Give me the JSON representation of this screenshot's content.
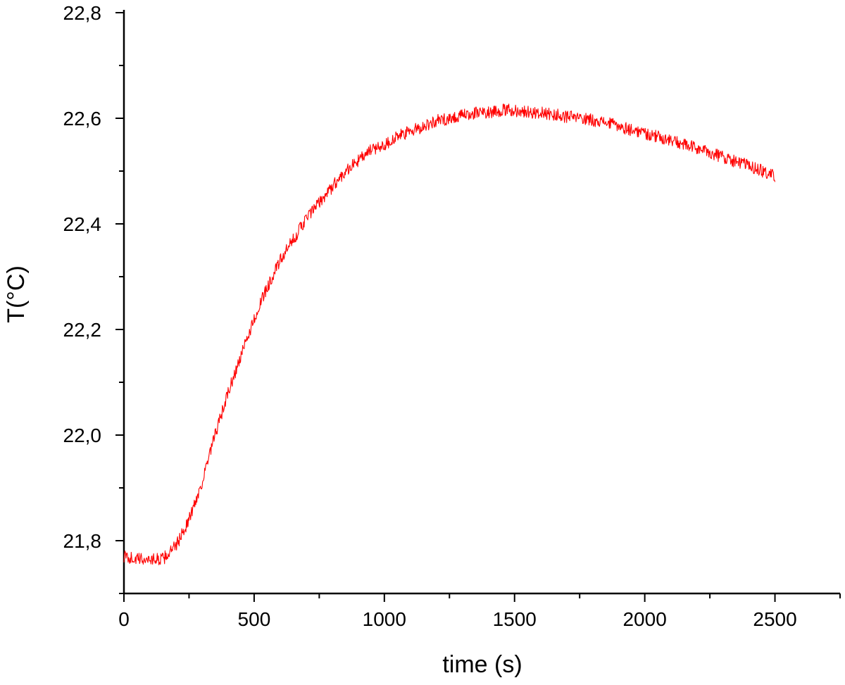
{
  "chart_data": {
    "type": "line",
    "xlabel": "time (s)",
    "ylabel": "T(°C)",
    "xlim": [
      0,
      2750
    ],
    "ylim": [
      21.7,
      22.8
    ],
    "x_ticks": [
      0,
      500,
      1000,
      1500,
      2000,
      2500
    ],
    "x_tick_labels": [
      "0",
      "500",
      "1000",
      "1500",
      "2000",
      "2500"
    ],
    "x_minor_ticks": [
      250,
      750,
      1250,
      1750,
      2250,
      2750
    ],
    "y_ticks": [
      21.8,
      22.0,
      22.2,
      22.4,
      22.6,
      22.8
    ],
    "y_tick_labels": [
      "21,8",
      "22,0",
      "22,2",
      "22,4",
      "22,6",
      "22,8"
    ],
    "y_minor_ticks": [
      21.7,
      21.9,
      22.1,
      22.3,
      22.5,
      22.7
    ],
    "grid": false,
    "legend": "none",
    "series": [
      {
        "color": "#ff0000",
        "noise_amplitude": 0.012,
        "x": [
          0,
          50,
          100,
          150,
          200,
          250,
          300,
          350,
          400,
          450,
          500,
          550,
          600,
          650,
          700,
          750,
          800,
          850,
          900,
          950,
          1000,
          1050,
          1100,
          1150,
          1200,
          1250,
          1300,
          1350,
          1400,
          1450,
          1500,
          1550,
          1600,
          1650,
          1700,
          1750,
          1800,
          1850,
          1900,
          1950,
          2000,
          2050,
          2100,
          2150,
          2200,
          2250,
          2300,
          2350,
          2400,
          2450,
          2500
        ],
        "y": [
          21.77,
          21.765,
          21.765,
          21.765,
          21.79,
          21.84,
          21.91,
          22.0,
          22.08,
          22.15,
          22.22,
          22.28,
          22.33,
          22.37,
          22.41,
          22.44,
          22.47,
          22.5,
          22.52,
          22.54,
          22.55,
          22.565,
          22.575,
          22.585,
          22.595,
          22.6,
          22.605,
          22.61,
          22.612,
          22.615,
          22.615,
          22.612,
          22.61,
          22.607,
          22.603,
          22.6,
          22.597,
          22.592,
          22.585,
          22.578,
          22.572,
          22.565,
          22.558,
          22.55,
          22.543,
          22.535,
          22.527,
          22.518,
          22.51,
          22.5,
          22.49
        ]
      }
    ]
  }
}
